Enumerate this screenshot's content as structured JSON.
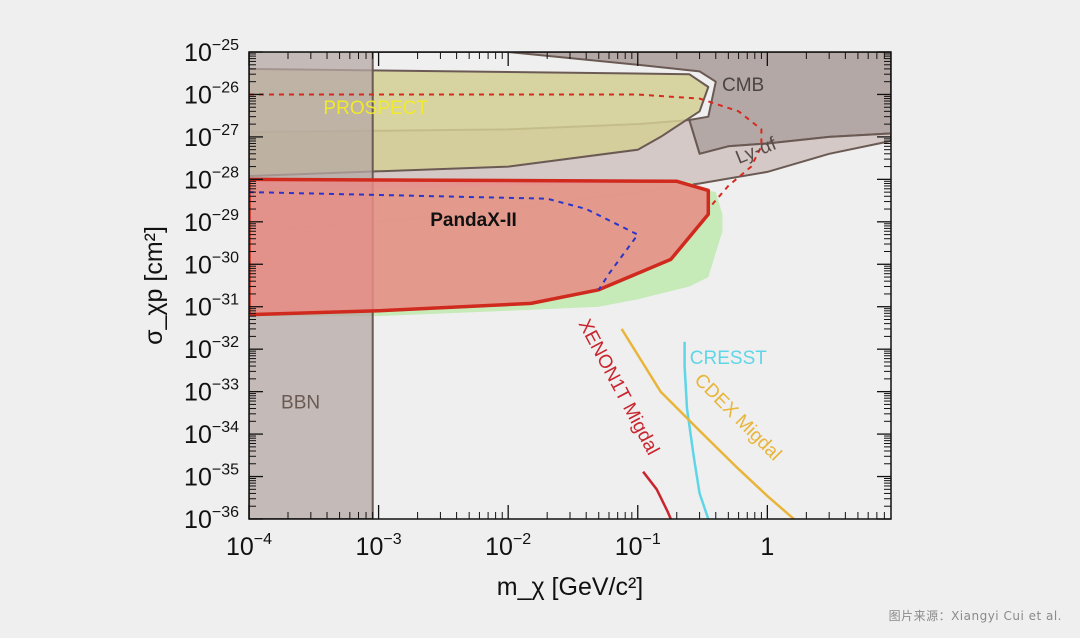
{
  "chart_data": {
    "type": "line",
    "xlabel": "m_χ [GeV/c²]",
    "ylabel": "σ_χp [cm²]",
    "x_scale": "log",
    "y_scale": "log",
    "xlim": [
      0.0001,
      9
    ],
    "ylim": [
      1e-36,
      1e-25
    ],
    "x_ticks": [
      {
        "value": 0.0001,
        "base": "10",
        "exp": "−4"
      },
      {
        "value": 0.001,
        "base": "10",
        "exp": "−3"
      },
      {
        "value": 0.01,
        "base": "10",
        "exp": "−2"
      },
      {
        "value": 0.1,
        "base": "10",
        "exp": "−1"
      },
      {
        "value": 1,
        "base": "1",
        "exp": ""
      }
    ],
    "y_ticks": [
      {
        "value": 1e-36,
        "base": "10",
        "exp": "−36"
      },
      {
        "value": 1e-35,
        "base": "10",
        "exp": "−35"
      },
      {
        "value": 1e-34,
        "base": "10",
        "exp": "−34"
      },
      {
        "value": 1e-33,
        "base": "10",
        "exp": "−33"
      },
      {
        "value": 1e-32,
        "base": "10",
        "exp": "−32"
      },
      {
        "value": 1e-31,
        "base": "10",
        "exp": "−31"
      },
      {
        "value": 1e-30,
        "base": "10",
        "exp": "−30"
      },
      {
        "value": 1e-29,
        "base": "10",
        "exp": "−29"
      },
      {
        "value": 1e-28,
        "base": "10",
        "exp": "−28"
      },
      {
        "value": 1e-27,
        "base": "10",
        "exp": "−27"
      },
      {
        "value": 1e-26,
        "base": "10",
        "exp": "−26"
      },
      {
        "value": 1e-25,
        "base": "10",
        "exp": "−25"
      }
    ],
    "grid": false,
    "regions": [
      {
        "name": "CMB",
        "fill": "#a89b98",
        "stroke": "#6b5a54",
        "opacity": 0.85,
        "points": [
          [
            0.0001,
            1e-25
          ],
          [
            9,
            1e-25
          ],
          [
            9,
            1.2e-27
          ],
          [
            3,
            1e-27
          ],
          [
            1,
            7e-28
          ],
          [
            0.5,
            6e-28
          ],
          [
            0.3,
            4e-28
          ],
          [
            0.25,
            2.5e-27
          ],
          [
            0.35,
            3e-27
          ],
          [
            0.4,
            2e-26
          ],
          [
            0.3,
            3.5e-26
          ],
          [
            0.1,
            5e-26
          ],
          [
            0.01,
            1e-25
          ],
          [
            0.0001,
            1.5e-25
          ]
        ]
      },
      {
        "name": "Ly-αf",
        "fill": "#cdbfbc",
        "stroke": "#6b5a54",
        "opacity": 0.8,
        "points": [
          [
            0.0001,
            6e-30
          ],
          [
            0.001,
            1e-29
          ],
          [
            0.01,
            2e-29
          ],
          [
            0.1,
            5e-29
          ],
          [
            0.3,
            8e-29
          ],
          [
            1,
            1.5e-28
          ],
          [
            3,
            4e-28
          ],
          [
            9,
            8e-28
          ],
          [
            9,
            1.2e-27
          ],
          [
            3,
            1e-27
          ],
          [
            1,
            7e-28
          ],
          [
            0.5,
            6e-28
          ],
          [
            0.3,
            4e-28
          ],
          [
            0.25,
            2.5e-27
          ],
          [
            0.1,
            2e-27
          ],
          [
            0.01,
            1.5e-27
          ],
          [
            0.0001,
            1.3e-27
          ]
        ]
      },
      {
        "name": "PROSPECT",
        "fill": "#d4cf94",
        "stroke": "#6b5a54",
        "opacity": 0.85,
        "points": [
          [
            0.0001,
            4e-26
          ],
          [
            0.25,
            3e-26
          ],
          [
            0.35,
            1.5e-26
          ],
          [
            0.3,
            4e-27
          ],
          [
            0.15,
            1e-27
          ],
          [
            0.1,
            5e-28
          ],
          [
            0.01,
            2e-28
          ],
          [
            0.0001,
            1.2e-28
          ]
        ]
      },
      {
        "name": "green",
        "fill": "#c3e9b4",
        "stroke": "none",
        "opacity": 0.95,
        "points": [
          [
            0.0001,
            5e-29
          ],
          [
            0.25,
            9e-29
          ],
          [
            0.3,
            6e-29
          ],
          [
            0.4,
            5e-29
          ],
          [
            0.45,
            1.5e-29
          ],
          [
            0.45,
            6e-30
          ],
          [
            0.35,
            5e-31
          ],
          [
            0.25,
            3e-31
          ],
          [
            0.1,
            1.5e-31
          ],
          [
            0.05,
            1e-31
          ],
          [
            0.01,
            8e-32
          ],
          [
            0.001,
            6e-32
          ],
          [
            0.0001,
            6e-32
          ]
        ]
      },
      {
        "name": "BBN",
        "fill": "#b6a8a4",
        "stroke": "#6b5a54",
        "opacity": 0.75,
        "points": [
          [
            0.0001,
            1e-36
          ],
          [
            0.0009,
            1e-36
          ],
          [
            0.0009,
            1.5e-25
          ],
          [
            0.0001,
            1.5e-25
          ]
        ]
      },
      {
        "name": "PandaX-II",
        "fill": "#e98b85",
        "stroke": "#d02a1f",
        "opacity": 0.85,
        "points": [
          [
            0.0001,
            1e-28
          ],
          [
            0.2,
            9e-29
          ],
          [
            0.35,
            5.5e-29
          ],
          [
            0.35,
            1.5e-29
          ],
          [
            0.18,
            1.3e-30
          ],
          [
            0.05,
            2.5e-31
          ],
          [
            0.015,
            1.2e-31
          ],
          [
            0.001,
            8e-32
          ],
          [
            0.0001,
            6.5e-32
          ]
        ]
      }
    ],
    "series": [
      {
        "name": "",
        "color": "#d62a1f",
        "dash": "5,5",
        "width": 2,
        "points": [
          [
            0.0001,
            1e-26
          ],
          [
            0.1,
            1e-26
          ],
          [
            0.3,
            8e-27
          ],
          [
            0.6,
            4e-27
          ],
          [
            0.9,
            1.5e-27
          ],
          [
            0.9,
            6e-28
          ],
          [
            0.75,
            2e-28
          ],
          [
            0.5,
            7e-29
          ],
          [
            0.35,
            2e-29
          ]
        ]
      },
      {
        "name": "",
        "color": "#2a35c9",
        "dash": "5,5",
        "width": 2,
        "points": [
          [
            0.0001,
            5e-29
          ],
          [
            0.02,
            3.5e-29
          ],
          [
            0.04,
            2e-29
          ],
          [
            0.1,
            5e-30
          ],
          [
            0.06,
            6e-31
          ],
          [
            0.05,
            2.5e-31
          ]
        ]
      },
      {
        "name": "XENON1T Migdal",
        "color": "#c9252e",
        "dash": "",
        "width": 2.5,
        "points": [
          [
            0.11,
            1.3e-35
          ],
          [
            0.14,
            5e-36
          ],
          [
            0.17,
            1.5e-36
          ],
          [
            0.18,
            1e-36
          ]
        ]
      },
      {
        "name": "CRESST",
        "color": "#5fd6e8",
        "dash": "",
        "width": 2.5,
        "points": [
          [
            0.23,
            1.5e-32
          ],
          [
            0.23,
            4e-33
          ],
          [
            0.24,
            4e-34
          ],
          [
            0.27,
            3e-35
          ],
          [
            0.3,
            4e-36
          ],
          [
            0.35,
            1e-36
          ]
        ]
      },
      {
        "name": "CDEX Migdal",
        "color": "#e8b53a",
        "dash": "",
        "width": 2.5,
        "points": [
          [
            0.075,
            3e-32
          ],
          [
            0.15,
            1e-33
          ],
          [
            0.3,
            1.2e-34
          ],
          [
            0.6,
            1.5e-35
          ],
          [
            1,
            3.5e-36
          ],
          [
            1.6,
            1e-36
          ]
        ]
      }
    ],
    "annotations": [
      {
        "id": "cmb",
        "text": "CMB",
        "x": 0.65,
        "y": 1.2e-26,
        "color": "#4b4542",
        "size": 19,
        "weight": "normal",
        "rotate": 0
      },
      {
        "id": "prospect",
        "text": "PROSPECT",
        "x": 0.00095,
        "y": 3.5e-27,
        "color": "#f0ea2a",
        "size": 19,
        "weight": "normal",
        "rotate": 0
      },
      {
        "id": "lyaf",
        "text": "Ly-αf",
        "x": 0.85,
        "y": 3.5e-28,
        "color": "#5a4c48",
        "size": 19,
        "weight": "normal",
        "rotate": -22
      },
      {
        "id": "pandax",
        "text": "PandaX-II",
        "x": 0.0054,
        "y": 8e-30,
        "color": "#111111",
        "size": 22,
        "weight": "bold",
        "rotate": 0
      },
      {
        "id": "bbn",
        "text": "BBN",
        "x": 0.00025,
        "y": 4e-34,
        "color": "#6b5a54",
        "size": 19,
        "weight": "normal",
        "rotate": 0
      },
      {
        "id": "cresst",
        "text": "CRESST",
        "x": 0.5,
        "y": 4.5e-33,
        "color": "#5fd6e8",
        "size": 19,
        "weight": "normal",
        "rotate": 0
      },
      {
        "id": "cdex",
        "text": "CDEX Migdal",
        "x": 0.55,
        "y": 2e-34,
        "color": "#e8b53a",
        "size": 19,
        "weight": "normal",
        "rotate": 45
      },
      {
        "id": "xenon",
        "text": "XENON1T Migdal",
        "x": 0.065,
        "y": 1.1e-33,
        "color": "#c9252e",
        "size": 19,
        "weight": "normal",
        "rotate": 62
      }
    ]
  },
  "credit": "图片来源：Xiangyi Cui et al."
}
